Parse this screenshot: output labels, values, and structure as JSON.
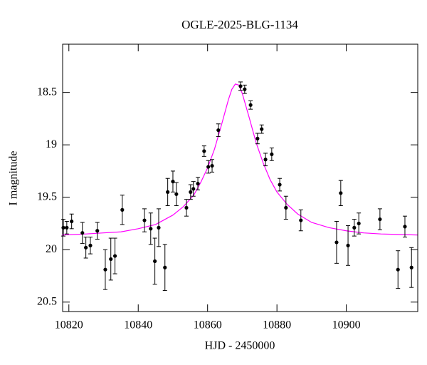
{
  "chart_data": {
    "type": "scatter",
    "title": "OGLE-2025-BLG-1134",
    "x_label": "HJD - 2450000",
    "y_label": "I magnitude",
    "xlim": [
      10818.2,
      10920.6
    ],
    "ylim": [
      20.59,
      18.04
    ],
    "xticks": [
      10820,
      10840,
      10860,
      10880,
      10900
    ],
    "yticks": [
      18.5,
      19,
      19.5,
      20,
      20.5
    ],
    "point_color": "#000000",
    "x": [
      10818.4,
      10819.4,
      10820.8,
      10823.9,
      10824.9,
      10826.2,
      10828.2,
      10830.5,
      10832.1,
      10833.3,
      10835.4,
      10841.8,
      10843.6,
      10844.8,
      10845.9,
      10847.7,
      10848.5,
      10850.0,
      10851.0,
      10853.9,
      10855.1,
      10855.9,
      10857.2,
      10859.0,
      10860.2,
      10861.3,
      10863.1,
      10869.5,
      10870.7,
      10872.4,
      10874.4,
      10875.6,
      10876.7,
      10878.5,
      10880.8,
      10882.6,
      10886.9,
      10897.2,
      10898.4,
      10900.5,
      10902.3,
      10903.6,
      10909.7,
      10914.9,
      10916.9,
      10918.8
    ],
    "values": [
      19.79,
      19.79,
      19.73,
      19.84,
      19.98,
      19.96,
      19.82,
      20.19,
      20.09,
      20.06,
      19.62,
      19.72,
      19.8,
      20.11,
      19.79,
      20.17,
      19.45,
      19.35,
      19.47,
      19.6,
      19.45,
      19.42,
      19.37,
      19.06,
      19.21,
      19.2,
      18.86,
      18.44,
      18.47,
      18.62,
      18.94,
      18.85,
      19.14,
      19.09,
      19.38,
      19.6,
      19.72,
      19.93,
      19.46,
      19.96,
      19.79,
      19.75,
      19.71,
      20.19,
      19.78,
      20.17
    ],
    "errors": [
      0.08,
      0.06,
      0.07,
      0.1,
      0.1,
      0.08,
      0.08,
      0.19,
      0.2,
      0.17,
      0.14,
      0.11,
      0.15,
      0.22,
      0.18,
      0.22,
      0.13,
      0.1,
      0.11,
      0.08,
      0.07,
      0.07,
      0.06,
      0.05,
      0.06,
      0.06,
      0.06,
      0.04,
      0.04,
      0.04,
      0.05,
      0.04,
      0.06,
      0.06,
      0.06,
      0.11,
      0.1,
      0.2,
      0.12,
      0.19,
      0.08,
      0.1,
      0.1,
      0.18,
      0.1,
      0.19
    ],
    "model": {
      "color": "#ff00ff",
      "x": [
        10818.0,
        10825.0,
        10830.0,
        10835.0,
        10840.0,
        10845.0,
        10850.0,
        10853.0,
        10856.0,
        10858.0,
        10860.0,
        10862.0,
        10864.0,
        10866.0,
        10867.0,
        10868.0,
        10869.0,
        10870.0,
        10872.0,
        10874.0,
        10876.0,
        10878.0,
        10880.0,
        10883.0,
        10886.0,
        10890.0,
        10895.0,
        10900.0,
        10905.0,
        10910.0,
        10915.0,
        10920.5
      ],
      "values": [
        19.86,
        19.85,
        19.84,
        19.83,
        19.8,
        19.76,
        19.67,
        19.59,
        19.48,
        19.36,
        19.22,
        19.04,
        18.81,
        18.57,
        18.47,
        18.42,
        18.43,
        18.51,
        18.74,
        18.98,
        19.17,
        19.33,
        19.45,
        19.57,
        19.66,
        19.74,
        19.79,
        19.82,
        19.84,
        19.85,
        19.855,
        19.86
      ]
    }
  }
}
